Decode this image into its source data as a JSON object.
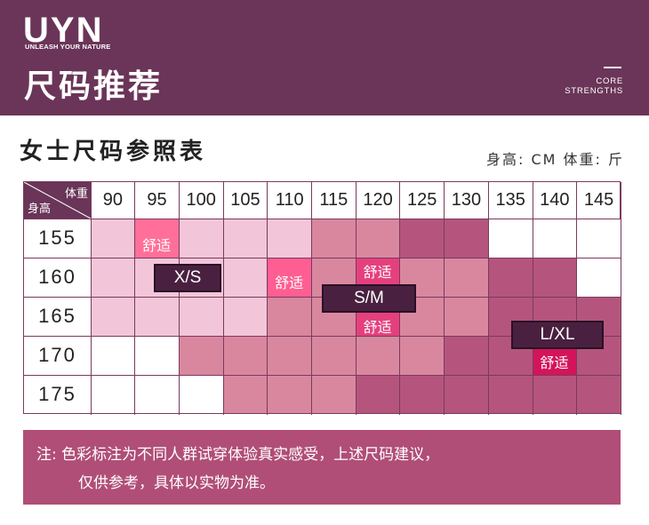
{
  "brand": {
    "logo": "UYN",
    "tagline": "UNLEASH YOUR NATURE"
  },
  "header": {
    "title": "尺码推荐",
    "core_line1": "CORE",
    "core_line2": "STRENGTHS"
  },
  "section": {
    "title": "女士尺码参照表",
    "unit_note": "身高: CM   体重: 斤"
  },
  "table": {
    "corner_weight": "体重",
    "corner_height": "身高",
    "weights": [
      "90",
      "95",
      "100",
      "105",
      "110",
      "115",
      "120",
      "125",
      "130",
      "135",
      "140",
      "145"
    ],
    "heights": [
      "155",
      "160",
      "165",
      "170",
      "175"
    ],
    "cell_colors": [
      [
        "#f2c6d8",
        "#ff6f99",
        "#f2c6d8",
        "#f2c6d8",
        "#f2c6d8",
        "#d9879f",
        "#d9879f",
        "#b5557e",
        "#b5557e",
        "#ffffff",
        "#ffffff",
        "#ffffff"
      ],
      [
        "#f2c6d8",
        "#f2c6d8",
        "#f2c6d8",
        "#f2c6d8",
        "#ff5e93",
        "#d9879f",
        "#e5407e",
        "#d9879f",
        "#d9879f",
        "#b5557e",
        "#b5557e",
        "#ffffff"
      ],
      [
        "#f2c6d8",
        "#f2c6d8",
        "#f2c6d8",
        "#f2c6d8",
        "#d9879f",
        "#d9879f",
        "#e5407e",
        "#d9879f",
        "#d9879f",
        "#b5557e",
        "#b5557e",
        "#b5557e"
      ],
      [
        "#ffffff",
        "#ffffff",
        "#d9879f",
        "#d9879f",
        "#d9879f",
        "#d9879f",
        "#d9879f",
        "#d9879f",
        "#b5557e",
        "#b5557e",
        "#d4145a",
        "#b5557e"
      ],
      [
        "#ffffff",
        "#ffffff",
        "#ffffff",
        "#d9879f",
        "#d9879f",
        "#d9879f",
        "#b5557e",
        "#b5557e",
        "#b5557e",
        "#b5557e",
        "#b5557e",
        "#b5557e"
      ]
    ],
    "comfort_label": "舒适",
    "size_xs": "X/S",
    "size_sm": "S/M",
    "size_lxl": "L/XL"
  },
  "footnote": {
    "line1": "注: 色彩标注为不同人群试穿体验真实感受，上述尺码建议，",
    "line2": "仅供参考，具体以实物为准。"
  }
}
